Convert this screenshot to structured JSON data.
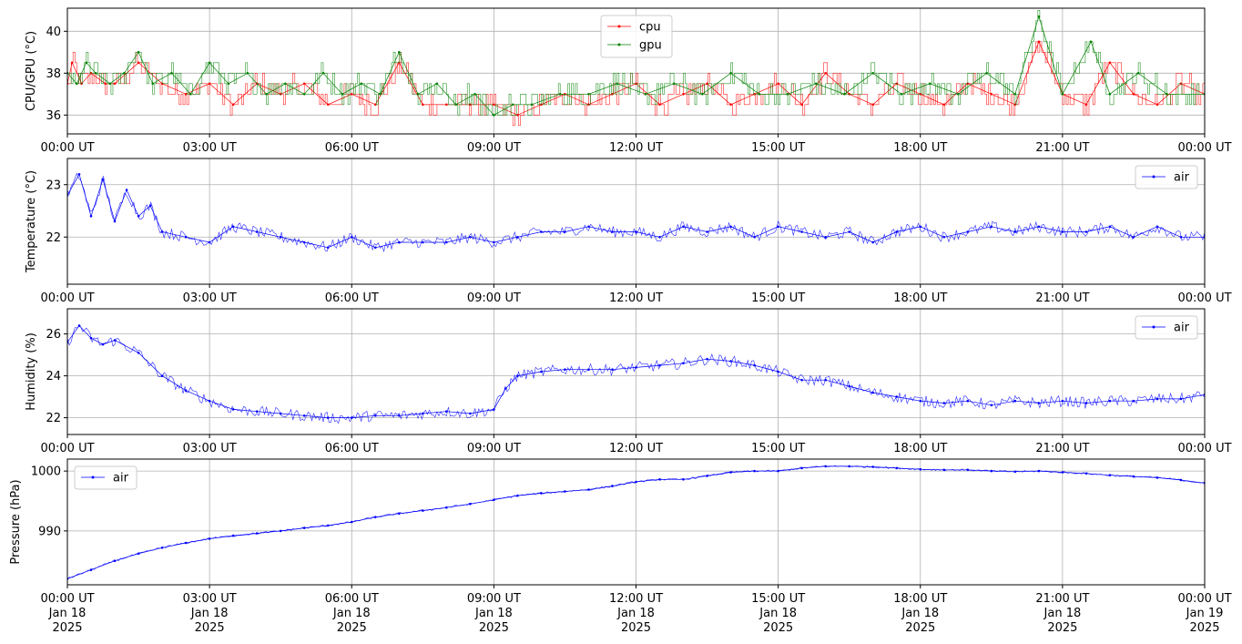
{
  "chart_data": [
    {
      "type": "line",
      "ylabel": "CPU/GPU (°C)",
      "x_domain_hours": [
        0,
        24
      ],
      "xticks_hours": [
        0,
        3,
        6,
        9,
        12,
        15,
        18,
        21,
        24
      ],
      "xtick_labels": [
        "00:00 UT",
        "03:00 UT",
        "06:00 UT",
        "09:00 UT",
        "12:00 UT",
        "15:00 UT",
        "18:00 UT",
        "21:00 UT",
        "00:00 UT"
      ],
      "ylim": [
        35.1,
        41.1
      ],
      "yticks": [
        36,
        38,
        40
      ],
      "ytick_labels": [
        "36",
        "38",
        "40"
      ],
      "grid": true,
      "legend": "top-center",
      "series": [
        {
          "name": "cpu",
          "color": "#ff0000",
          "marker": "point",
          "x": [
            0.0,
            0.1,
            0.3,
            0.5,
            0.8,
            1.0,
            1.5,
            2.0,
            2.5,
            3.0,
            3.5,
            4.0,
            4.5,
            5.0,
            5.5,
            6.0,
            6.5,
            7.0,
            7.5,
            8.0,
            8.5,
            9.0,
            9.5,
            10.0,
            10.5,
            11.0,
            11.5,
            12.0,
            12.5,
            13.0,
            13.5,
            14.0,
            14.5,
            15.0,
            15.5,
            16.0,
            16.5,
            17.0,
            17.5,
            18.0,
            18.5,
            19.0,
            19.5,
            20.0,
            20.5,
            21.0,
            21.5,
            22.0,
            22.5,
            23.0,
            23.5,
            24.0
          ],
          "values": [
            37.5,
            38.5,
            37.5,
            38.0,
            37.5,
            37.5,
            38.5,
            37.5,
            37.0,
            37.5,
            36.5,
            37.5,
            37.0,
            37.5,
            36.5,
            37.0,
            36.5,
            38.5,
            36.5,
            36.5,
            36.5,
            36.5,
            36.0,
            36.5,
            37.0,
            36.5,
            37.0,
            37.5,
            36.5,
            37.0,
            37.5,
            36.5,
            37.0,
            37.5,
            36.5,
            38.0,
            37.0,
            36.5,
            37.5,
            37.0,
            36.5,
            37.5,
            37.0,
            36.5,
            39.5,
            37.0,
            36.5,
            38.5,
            37.0,
            36.5,
            37.5,
            37.0
          ]
        },
        {
          "name": "gpu",
          "color": "#008000",
          "marker": "point",
          "x": [
            0.0,
            0.2,
            0.4,
            0.6,
            0.9,
            1.2,
            1.5,
            1.8,
            2.2,
            2.6,
            3.0,
            3.4,
            3.8,
            4.2,
            4.6,
            5.0,
            5.4,
            5.8,
            6.2,
            6.6,
            7.0,
            7.4,
            7.8,
            8.2,
            8.6,
            9.0,
            9.4,
            9.8,
            10.4,
            11.0,
            11.6,
            12.2,
            12.8,
            13.4,
            14.0,
            14.6,
            15.2,
            15.8,
            16.4,
            17.0,
            17.6,
            18.2,
            18.8,
            19.4,
            20.0,
            20.5,
            21.0,
            21.6,
            22.0,
            22.6,
            23.2,
            24.0
          ],
          "values": [
            38.0,
            37.5,
            38.5,
            38.0,
            37.5,
            38.0,
            39.0,
            37.5,
            38.0,
            37.0,
            38.5,
            37.5,
            38.0,
            37.0,
            37.5,
            37.0,
            38.0,
            37.0,
            37.5,
            37.0,
            39.0,
            37.0,
            37.5,
            36.5,
            37.0,
            36.0,
            36.5,
            36.5,
            37.0,
            37.0,
            37.5,
            37.0,
            37.5,
            37.0,
            38.0,
            37.0,
            37.0,
            37.5,
            37.0,
            38.0,
            37.0,
            37.5,
            37.0,
            38.0,
            37.0,
            40.7,
            37.0,
            39.5,
            37.0,
            38.0,
            37.0,
            37.0
          ]
        }
      ]
    },
    {
      "type": "line",
      "ylabel": "Temperature (°C)",
      "x_domain_hours": [
        0,
        24
      ],
      "xticks_hours": [
        0,
        3,
        6,
        9,
        12,
        15,
        18,
        21,
        24
      ],
      "xtick_labels": [
        "00:00 UT",
        "03:00 UT",
        "06:00 UT",
        "09:00 UT",
        "12:00 UT",
        "15:00 UT",
        "18:00 UT",
        "21:00 UT",
        "00:00 UT"
      ],
      "ylim": [
        21.1,
        23.5
      ],
      "yticks": [
        22,
        23
      ],
      "ytick_labels": [
        "22",
        "23"
      ],
      "grid": true,
      "legend": "top-right",
      "series": [
        {
          "name": "air",
          "color": "#0000ff",
          "marker": "point",
          "x": [
            0.0,
            0.25,
            0.5,
            0.75,
            1.0,
            1.25,
            1.5,
            1.75,
            2.0,
            2.5,
            3.0,
            3.5,
            4.0,
            4.5,
            5.0,
            5.5,
            6.0,
            6.5,
            7.0,
            7.5,
            8.0,
            8.5,
            9.0,
            9.5,
            10.0,
            10.5,
            11.0,
            11.5,
            12.0,
            12.5,
            13.0,
            13.5,
            14.0,
            14.5,
            15.0,
            15.5,
            16.0,
            16.5,
            17.0,
            17.5,
            18.0,
            18.5,
            19.0,
            19.5,
            20.0,
            20.5,
            21.0,
            21.5,
            22.0,
            22.5,
            23.0,
            23.5,
            24.0
          ],
          "values": [
            22.8,
            23.2,
            22.4,
            23.1,
            22.3,
            22.9,
            22.4,
            22.6,
            22.1,
            22.0,
            21.9,
            22.2,
            22.1,
            22.0,
            21.9,
            21.8,
            22.0,
            21.8,
            21.9,
            21.9,
            21.9,
            22.0,
            21.9,
            22.0,
            22.1,
            22.1,
            22.2,
            22.1,
            22.1,
            22.0,
            22.2,
            22.1,
            22.2,
            22.0,
            22.2,
            22.1,
            22.0,
            22.1,
            21.9,
            22.1,
            22.2,
            22.0,
            22.1,
            22.2,
            22.1,
            22.2,
            22.1,
            22.1,
            22.2,
            22.0,
            22.2,
            22.0,
            22.0
          ]
        }
      ]
    },
    {
      "type": "line",
      "ylabel": "Humidity (%)",
      "x_domain_hours": [
        0,
        24
      ],
      "xticks_hours": [
        0,
        3,
        6,
        9,
        12,
        15,
        18,
        21,
        24
      ],
      "xtick_labels": [
        "00:00 UT",
        "03:00 UT",
        "06:00 UT",
        "09:00 UT",
        "12:00 UT",
        "15:00 UT",
        "18:00 UT",
        "21:00 UT",
        "00:00 UT"
      ],
      "ylim": [
        21.2,
        27.2
      ],
      "yticks": [
        22,
        24,
        26
      ],
      "ytick_labels": [
        "22",
        "24",
        "26"
      ],
      "grid": true,
      "legend": "top-right",
      "series": [
        {
          "name": "air",
          "color": "#0000ff",
          "marker": "point",
          "x": [
            0.0,
            0.25,
            0.5,
            0.75,
            1.0,
            1.5,
            2.0,
            2.5,
            3.0,
            3.5,
            4.0,
            4.5,
            5.0,
            5.5,
            6.0,
            6.5,
            7.0,
            7.5,
            8.0,
            8.5,
            9.0,
            9.25,
            9.5,
            10.0,
            10.5,
            11.0,
            11.5,
            12.0,
            12.5,
            13.0,
            13.5,
            14.0,
            14.5,
            15.0,
            15.5,
            16.0,
            16.5,
            17.0,
            17.5,
            18.0,
            18.5,
            19.0,
            19.5,
            20.0,
            20.5,
            21.0,
            21.5,
            22.0,
            22.5,
            23.0,
            23.5,
            24.0
          ],
          "values": [
            25.6,
            26.4,
            25.8,
            25.5,
            25.7,
            25.1,
            24.0,
            23.3,
            22.8,
            22.4,
            22.3,
            22.2,
            22.1,
            22.0,
            22.0,
            22.1,
            22.1,
            22.2,
            22.3,
            22.2,
            22.4,
            23.4,
            24.0,
            24.2,
            24.3,
            24.3,
            24.3,
            24.4,
            24.5,
            24.6,
            24.8,
            24.7,
            24.5,
            24.2,
            23.8,
            23.8,
            23.5,
            23.2,
            23.0,
            22.8,
            22.7,
            22.8,
            22.6,
            22.8,
            22.7,
            22.8,
            22.7,
            22.8,
            22.8,
            22.9,
            22.9,
            23.1
          ]
        }
      ]
    },
    {
      "type": "line",
      "ylabel": "Pressure (hPa)",
      "x_domain_hours": [
        0,
        24
      ],
      "xticks_hours": [
        0,
        3,
        6,
        9,
        12,
        15,
        18,
        21,
        24
      ],
      "xtick_labels": [
        "00:00 UT\nJan 18\n2025",
        "03:00 UT\nJan 18\n2025",
        "06:00 UT\nJan 18\n2025",
        "09:00 UT\nJan 18\n2025",
        "12:00 UT\nJan 18\n2025",
        "15:00 UT\nJan 18\n2025",
        "18:00 UT\nJan 18\n2025",
        "21:00 UT\nJan 18\n2025",
        "00:00 UT\nJan 19\n2025"
      ],
      "ylim": [
        981.0,
        1002.0
      ],
      "yticks": [
        990,
        1000
      ],
      "ytick_labels": [
        "990",
        "1000"
      ],
      "grid": true,
      "legend": "top-left",
      "series": [
        {
          "name": "air",
          "color": "#0000ff",
          "marker": "point",
          "x": [
            0.0,
            0.5,
            1.0,
            1.5,
            2.0,
            2.5,
            3.0,
            3.5,
            4.0,
            4.5,
            5.0,
            5.5,
            6.0,
            6.5,
            7.0,
            7.5,
            8.0,
            8.5,
            9.0,
            9.5,
            10.0,
            10.5,
            11.0,
            11.5,
            12.0,
            12.5,
            13.0,
            13.5,
            14.0,
            14.5,
            15.0,
            15.5,
            16.0,
            16.5,
            17.0,
            17.5,
            18.0,
            18.5,
            19.0,
            19.5,
            20.0,
            20.5,
            21.0,
            21.5,
            22.0,
            22.5,
            23.0,
            23.5,
            24.0
          ],
          "values": [
            982.0,
            983.5,
            985.0,
            986.2,
            987.2,
            988.0,
            988.7,
            989.2,
            989.6,
            990.0,
            990.5,
            990.9,
            991.5,
            992.3,
            992.9,
            993.4,
            993.9,
            994.5,
            995.2,
            995.9,
            996.3,
            996.6,
            996.9,
            997.5,
            998.2,
            998.6,
            998.6,
            999.2,
            999.8,
            1000.0,
            1000.0,
            1000.5,
            1000.8,
            1000.8,
            1000.7,
            1000.5,
            1000.3,
            1000.2,
            1000.2,
            1000.0,
            999.9,
            1000.0,
            999.8,
            999.6,
            999.3,
            999.1,
            998.9,
            998.5,
            998.0
          ]
        }
      ]
    }
  ]
}
